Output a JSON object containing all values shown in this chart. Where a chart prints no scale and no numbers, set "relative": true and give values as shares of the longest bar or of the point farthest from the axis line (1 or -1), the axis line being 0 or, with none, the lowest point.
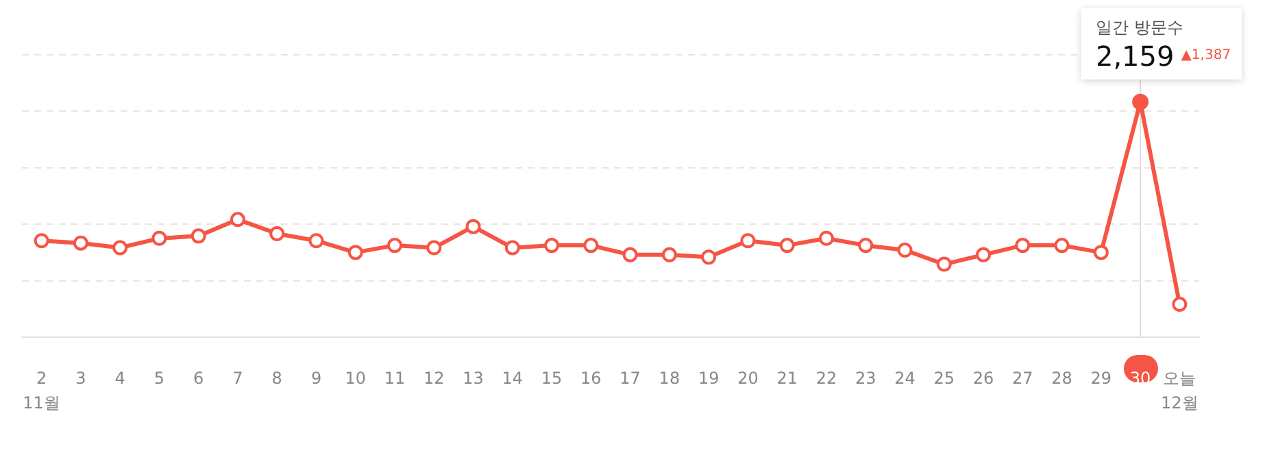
{
  "chart_data": {
    "type": "line",
    "relative": true,
    "categories": [
      "2\n11월",
      "3",
      "4",
      "5",
      "6",
      "7",
      "8",
      "9",
      "10",
      "11",
      "12",
      "13",
      "14",
      "15",
      "16",
      "17",
      "18",
      "19",
      "20",
      "21",
      "22",
      "23",
      "24",
      "25",
      "26",
      "27",
      "28",
      "29",
      "30",
      "오늘\n12월"
    ],
    "series": [
      {
        "color": "#f65545",
        "values": [
          0.41,
          0.4,
          0.38,
          0.42,
          0.43,
          0.5,
          0.44,
          0.41,
          0.36,
          0.39,
          0.38,
          0.47,
          0.38,
          0.39,
          0.39,
          0.35,
          0.35,
          0.34,
          0.41,
          0.39,
          0.42,
          0.39,
          0.37,
          0.31,
          0.35,
          0.39,
          0.39,
          0.36,
          1,
          0.14
        ]
      }
    ],
    "ref_lines": [
      {
        "axis": "x",
        "value": "30",
        "color": "#dddddd"
      }
    ],
    "tick_labels": "x",
    "grid": "y",
    "marker": "circle",
    "line_style": "solid",
    "legend": false,
    "annotations": [
      "일간 방문수",
      "2,159",
      "▲1,387"
    ]
  }
}
